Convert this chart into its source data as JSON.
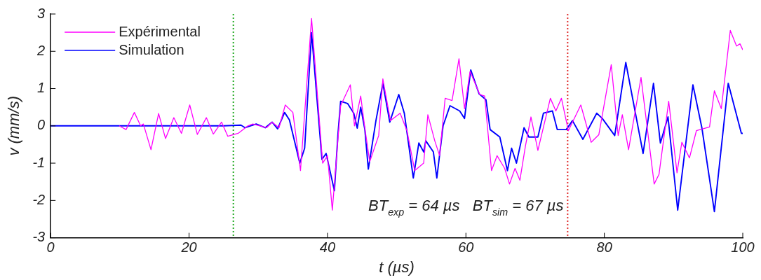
{
  "chart_data": {
    "type": "line",
    "xlabel": "t (µs)",
    "ylabel": "v (mm/s)",
    "xlim": [
      0,
      100
    ],
    "ylim": [
      -3,
      3
    ],
    "xticks": [
      0,
      20,
      40,
      60,
      80,
      100
    ],
    "yticks": [
      -3,
      -2,
      -1,
      0,
      1,
      2,
      3
    ],
    "grid": false,
    "legend": "top left",
    "marker": "none",
    "line_style": "solid",
    "annotations": [
      "BT$_{exp}$ = 64 µs   BT$_{sim}$ = 67 µs"
    ],
    "ref_lines": [
      {
        "axis": "x",
        "value": 26.4,
        "color": "#22aa22",
        "line_style": "dotted"
      },
      {
        "axis": "x",
        "value": 74.7,
        "color": "#e03030",
        "line_style": "dotted"
      }
    ],
    "series": [
      {
        "name": "Expérimental",
        "color": "#ff00ff",
        "x": [
          9.9,
          10.9,
          12.1,
          13,
          13.4,
          14.5,
          15.6,
          16.6,
          17.8,
          18.9,
          20.1,
          21.2,
          22.5,
          23.5,
          24.7,
          25.6,
          27.1,
          28.5,
          29.2,
          31.2,
          32,
          33,
          33.9,
          35,
          36.1,
          37.7,
          39.3,
          40,
          40.7,
          41.9,
          43.3,
          43.9,
          44.8,
          45.4,
          46.1,
          47.4,
          48,
          49.1,
          50.5,
          51.5,
          52.6,
          53.9,
          54.5,
          55.5,
          56.2,
          57,
          58,
          59,
          59.8,
          60.6,
          62,
          62.7,
          63.7,
          64.5,
          65.6,
          66.3,
          67.1,
          67.8,
          68.6,
          69.4,
          70.4,
          72.2,
          73,
          73.8,
          74.8,
          76.6,
          78.1,
          79.2,
          81,
          82,
          82.6,
          83.5,
          85.3,
          87.2,
          87.9,
          89.3,
          90.5,
          91.2,
          92.3,
          93.3,
          95.2,
          95.9,
          96.9,
          98.2,
          99.1,
          99.6,
          100
        ],
        "values": [
          0,
          -0.1,
          0.36,
          0,
          0.05,
          -0.64,
          0.33,
          -0.34,
          0.22,
          -0.2,
          0.56,
          -0.23,
          0.22,
          -0.22,
          0.1,
          -0.28,
          -0.2,
          0,
          0.05,
          -0.05,
          0.1,
          -0.05,
          0.56,
          0.36,
          -1.2,
          2.88,
          -1,
          -0.8,
          -2.26,
          0.54,
          1.1,
          0,
          0.8,
          -0.06,
          -0.96,
          -0.26,
          1.26,
          0.14,
          0.34,
          -0.14,
          -1.2,
          -1,
          0.3,
          -0.4,
          -0.8,
          0.74,
          0.68,
          1.8,
          0.46,
          1.46,
          0.84,
          0.8,
          -1.2,
          -0.8,
          -1.14,
          -1.56,
          -1.14,
          -1.46,
          -0.54,
          0.24,
          -0.66,
          0.74,
          0.4,
          0.74,
          -0.13,
          0.56,
          -0.44,
          -0.24,
          1.64,
          -0.26,
          0.3,
          -0.64,
          1.3,
          -1.56,
          -1.3,
          0.66,
          -1.26,
          -0.44,
          -0.86,
          -0.13,
          -0.03,
          0.94,
          0.46,
          2.56,
          2.14,
          2.2,
          2.04
        ]
      },
      {
        "name": "Simulation",
        "color": "#0000ff",
        "x": [
          0,
          25,
          27.5,
          28.1,
          29.7,
          31,
          32,
          32.8,
          33.8,
          34.5,
          36,
          36.7,
          37.7,
          39.2,
          39.8,
          41,
          41.5,
          41.9,
          42.9,
          43.8,
          44.3,
          44.8,
          45.4,
          45.9,
          47,
          48,
          49,
          50.3,
          51.1,
          52.4,
          53.2,
          53.9,
          54.2,
          55.3,
          55.8,
          56.7,
          57.7,
          59.1,
          59.8,
          60.7,
          61.9,
          62.9,
          63.5,
          64.9,
          66,
          66.6,
          67.3,
          68.4,
          69.1,
          70.4,
          71.2,
          72.5,
          73.2,
          74.5,
          75.4,
          76.9,
          78.9,
          79.7,
          81.5,
          83.1,
          85.6,
          87.1,
          88.1,
          89.2,
          90.6,
          92.8,
          94.1,
          95.9,
          97.9,
          99.8,
          100
        ],
        "values": [
          0,
          0,
          0.02,
          -0.05,
          0.05,
          -0.05,
          0.1,
          -0.08,
          0.36,
          0.16,
          -1,
          -0.6,
          2.5,
          -0.9,
          -0.74,
          -1.74,
          -0.26,
          0.66,
          0.6,
          0.34,
          -0.06,
          0.5,
          -0.1,
          -1.16,
          0.14,
          1.14,
          0.1,
          0.84,
          0.34,
          -1.4,
          -0.46,
          -0.7,
          -0.4,
          -0.7,
          -1.4,
          0,
          0.54,
          0.4,
          0.2,
          1.5,
          0.86,
          0.7,
          -0.1,
          -0.3,
          -1.2,
          -0.6,
          -1,
          -0.05,
          -0.3,
          -0.3,
          0.34,
          0.4,
          -0.1,
          -0.1,
          0.14,
          -0.36,
          0.34,
          0.2,
          -0.26,
          1.7,
          -0.74,
          1.14,
          -0.46,
          0.24,
          -2.26,
          1.1,
          -0.06,
          -2.3,
          1.14,
          -0.2,
          -0.2
        ]
      }
    ]
  }
}
